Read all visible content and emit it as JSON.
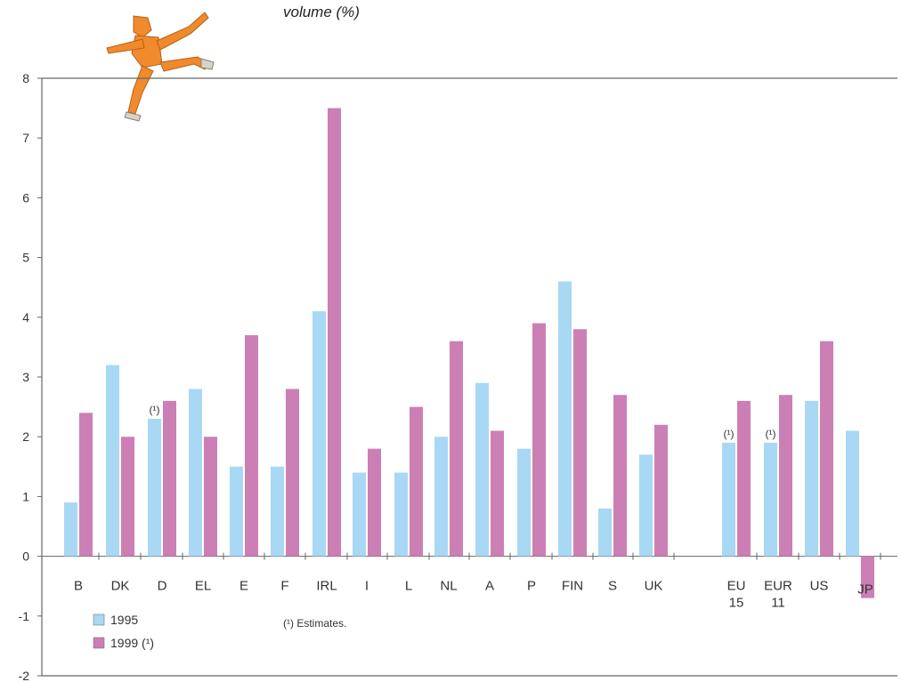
{
  "title": "volume (%)",
  "footnote": "(¹) Estimates.",
  "colors": {
    "s1995": "#a8d8f4",
    "s1999": "#cc7fb4",
    "axis": "#666666",
    "figure": "#f08a2c"
  },
  "chart_data": {
    "type": "bar",
    "title": "volume (%)",
    "categories": [
      "B",
      "DK",
      "D",
      "EL",
      "E",
      "F",
      "IRL",
      "I",
      "L",
      "NL",
      "A",
      "P",
      "FIN",
      "S",
      "UK",
      "EU 15",
      "EUR 11",
      "US",
      "JP"
    ],
    "category_lines": [
      [
        "B"
      ],
      [
        "DK"
      ],
      [
        "D"
      ],
      [
        "EL"
      ],
      [
        "E"
      ],
      [
        "F"
      ],
      [
        "IRL"
      ],
      [
        "I"
      ],
      [
        "L"
      ],
      [
        "NL"
      ],
      [
        "A"
      ],
      [
        "P"
      ],
      [
        "FIN"
      ],
      [
        "S"
      ],
      [
        "UK"
      ],
      [
        "EU",
        "15"
      ],
      [
        "EUR",
        "11"
      ],
      [
        "US"
      ],
      [
        "JP"
      ]
    ],
    "series": [
      {
        "name": "1995",
        "values": [
          0.9,
          3.2,
          2.3,
          2.8,
          1.5,
          1.5,
          4.1,
          1.4,
          1.4,
          2.0,
          2.9,
          1.8,
          4.6,
          0.8,
          1.7,
          1.9,
          1.9,
          2.6,
          2.1
        ]
      },
      {
        "name": "1999 (¹)",
        "values": [
          2.4,
          2.0,
          2.6,
          2.0,
          3.7,
          2.8,
          7.5,
          1.8,
          2.5,
          3.6,
          2.1,
          3.9,
          3.8,
          2.7,
          2.2,
          2.6,
          2.7,
          3.6,
          -0.7
        ]
      }
    ],
    "estimate_markers": [
      {
        "category": "D",
        "text": "(¹)"
      },
      {
        "category": "EU 15",
        "text": "(¹)"
      },
      {
        "category": "EUR 11",
        "text": "(¹)"
      }
    ],
    "ylim": [
      -2,
      8
    ],
    "yticks": [
      "-2",
      "-1",
      "0",
      "1",
      "2",
      "3",
      "4",
      "5",
      "6",
      "7",
      "8"
    ],
    "legend": [
      {
        "label": "1995"
      },
      {
        "label": "1999 (¹)"
      }
    ],
    "legend_position": "bottom-left",
    "grid": false
  }
}
